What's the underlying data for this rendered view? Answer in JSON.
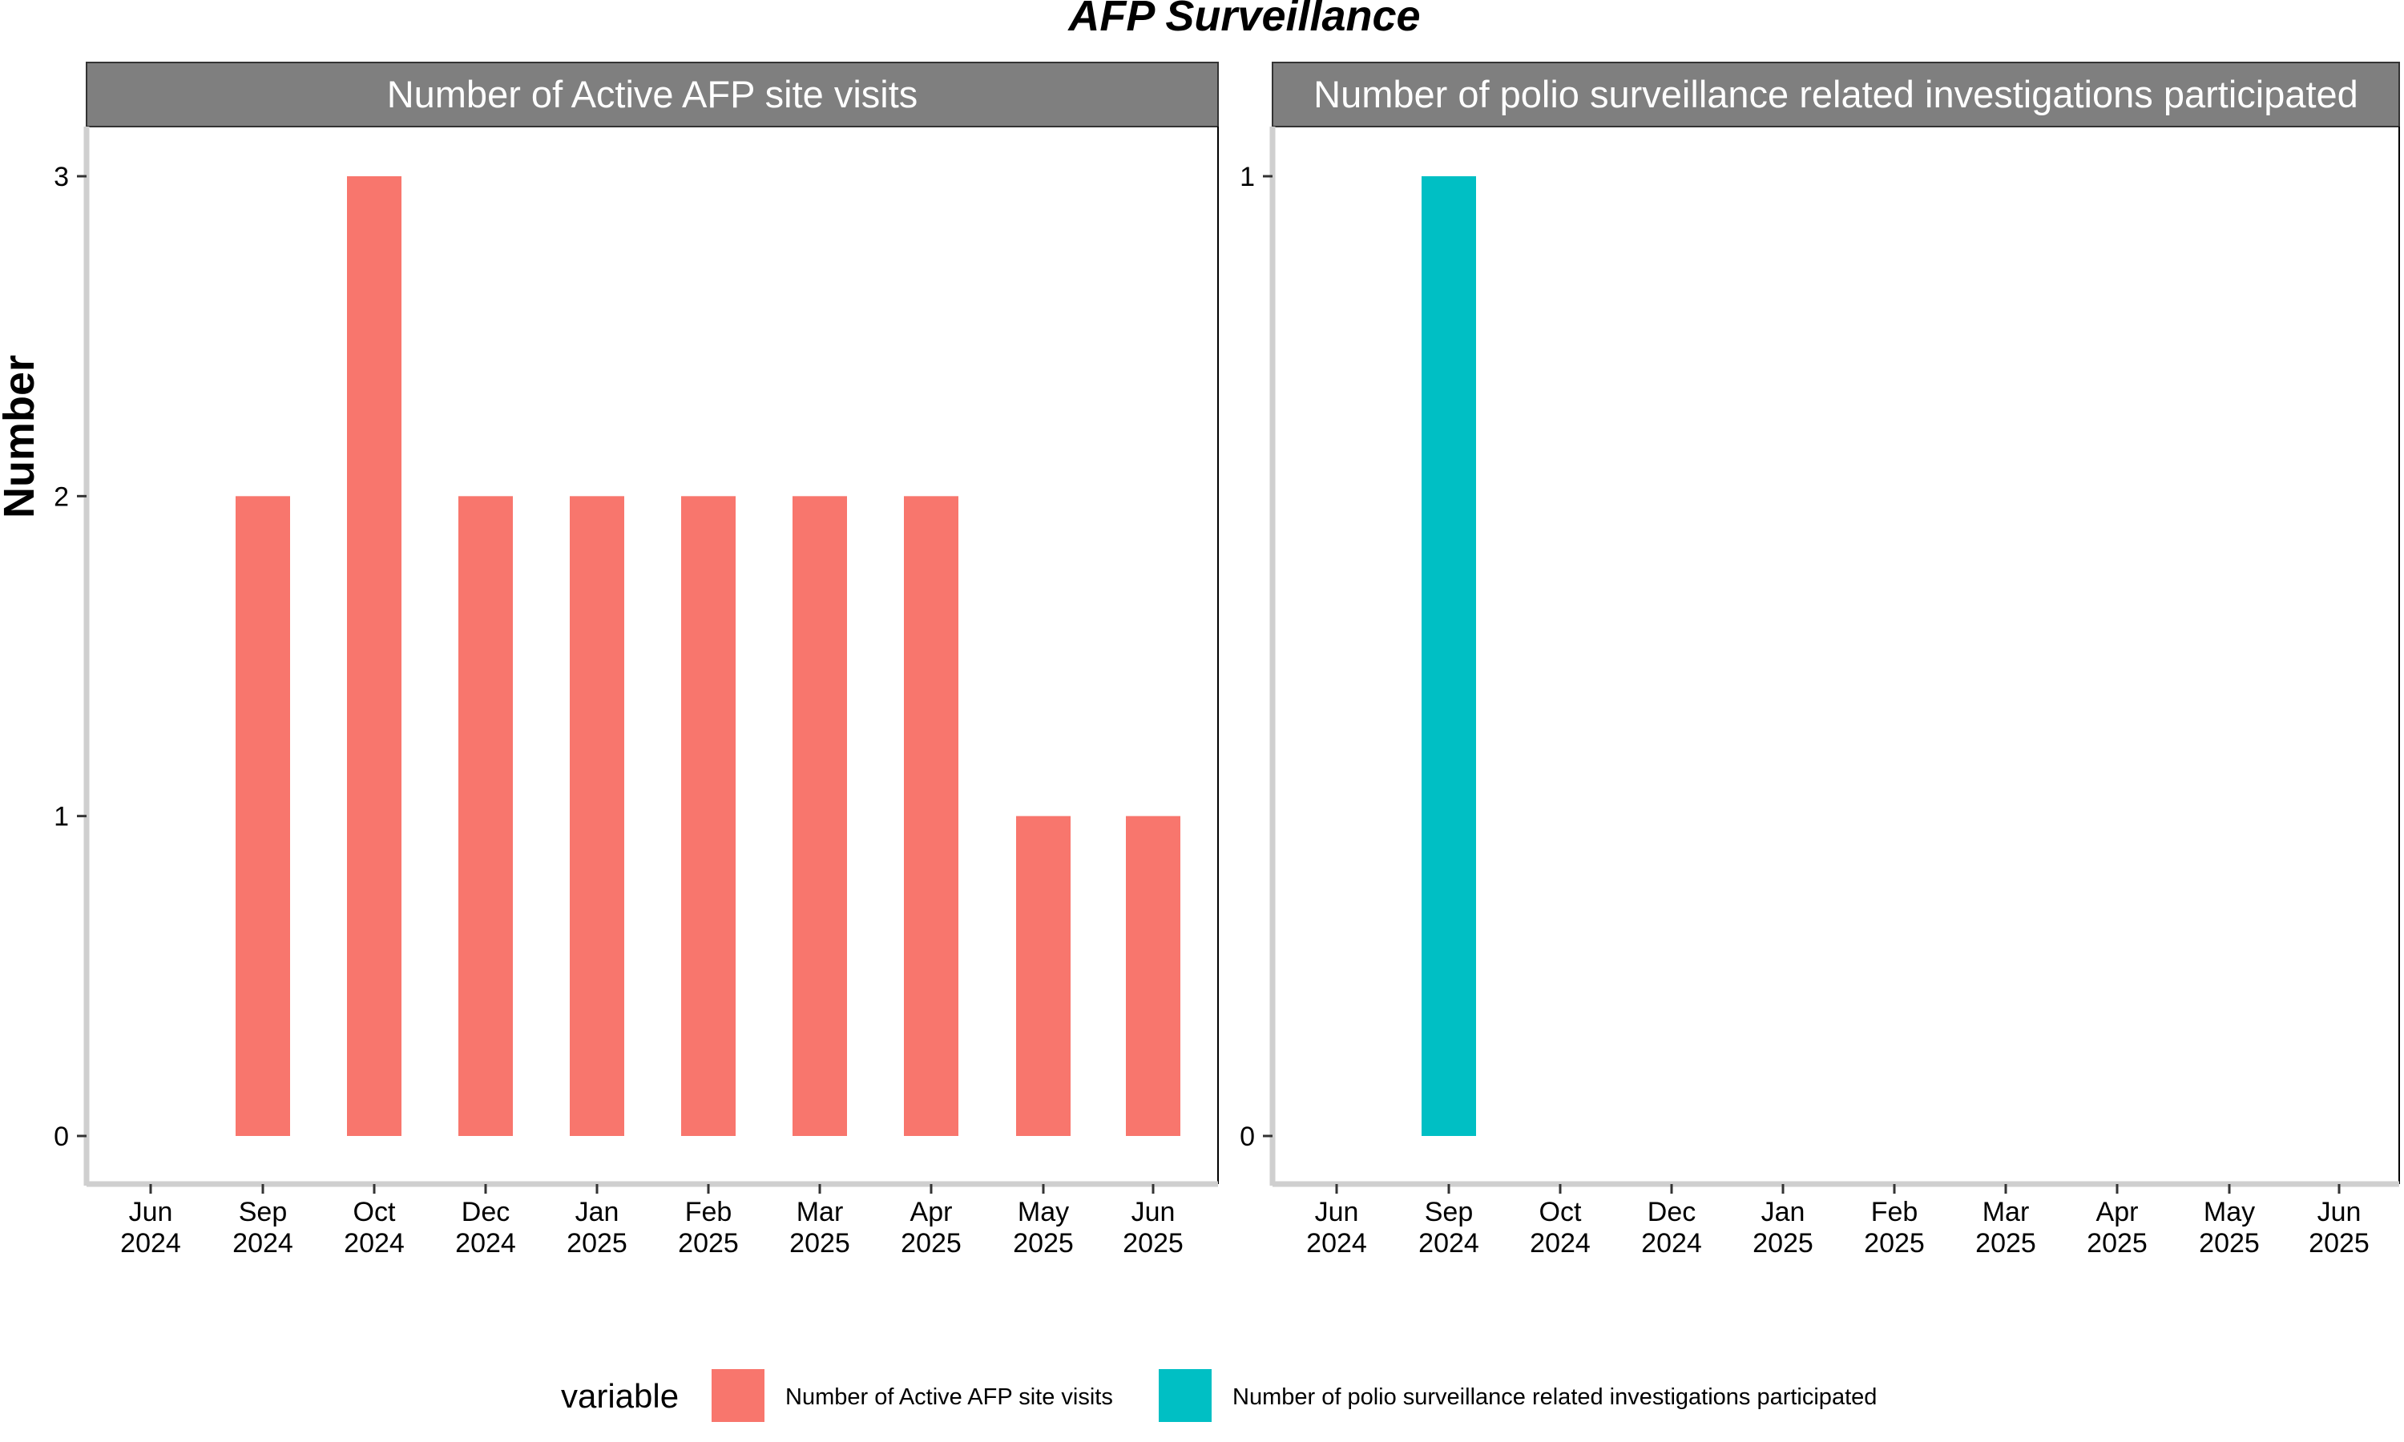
{
  "chart_data": {
    "type": "bar",
    "title": "AFP Surveillance",
    "ylabel": "Number",
    "xlabel": "",
    "x_ticks": [
      {
        "month": "Jun",
        "year": "2024",
        "date": "2024-06"
      },
      {
        "month": "Sep",
        "year": "2024",
        "date": "2024-09"
      },
      {
        "month": "Oct",
        "year": "2024",
        "date": "2024-10"
      },
      {
        "month": "Dec",
        "year": "2024",
        "date": "2024-12"
      },
      {
        "month": "Jan",
        "year": "2025",
        "date": "2025-01"
      },
      {
        "month": "Feb",
        "year": "2025",
        "date": "2025-02"
      },
      {
        "month": "Mar",
        "year": "2025",
        "date": "2025-03"
      },
      {
        "month": "Apr",
        "year": "2025",
        "date": "2025-04"
      },
      {
        "month": "May",
        "year": "2025",
        "date": "2025-05"
      },
      {
        "month": "Jun",
        "year": "2025",
        "date": "2025-06"
      }
    ],
    "panels": [
      {
        "strip": "Number of Active AFP site visits",
        "color": "#F8766D",
        "y_ticks": [
          0,
          1,
          2,
          3
        ],
        "ylim": [
          0,
          3
        ],
        "values": [
          0,
          2,
          3,
          2,
          2,
          2,
          2,
          2,
          1,
          1
        ]
      },
      {
        "strip": "Number of polio surveillance related investigations participated",
        "color": "#00BFC4",
        "y_ticks": [
          0,
          1
        ],
        "ylim": [
          0,
          1
        ],
        "values": [
          0,
          1,
          0,
          0,
          0,
          0,
          0,
          0,
          0,
          0
        ]
      }
    ],
    "legend": {
      "title": "variable",
      "position": "bottom",
      "items": [
        {
          "label": "Number of Active AFP site visits",
          "color": "#F8766D"
        },
        {
          "label": "Number of polio surveillance related investigations participated",
          "color": "#00BFC4"
        }
      ]
    },
    "grid": false
  }
}
